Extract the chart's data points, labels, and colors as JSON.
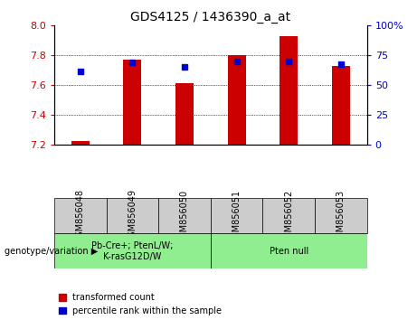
{
  "title": "GDS4125 / 1436390_a_at",
  "samples": [
    "GSM856048",
    "GSM856049",
    "GSM856050",
    "GSM856051",
    "GSM856052",
    "GSM856053"
  ],
  "red_values": [
    7.22,
    7.77,
    7.61,
    7.8,
    7.93,
    7.73
  ],
  "blue_values": [
    7.69,
    7.75,
    7.72,
    7.76,
    7.76,
    7.74
  ],
  "y_min": 7.2,
  "y_max": 8.0,
  "y_ticks": [
    7.2,
    7.4,
    7.6,
    7.8,
    8.0
  ],
  "y2_ticks": [
    0,
    25,
    50,
    75,
    100
  ],
  "group1_label": "Pb-Cre+; PtenL/W;\nK-rasG12D/W",
  "group2_label": "Pten null",
  "group1_indices": [
    0,
    1,
    2
  ],
  "group2_indices": [
    3,
    4,
    5
  ],
  "red_color": "#cc0000",
  "blue_color": "#0000cc",
  "bar_bottom": 7.2,
  "bar_width": 0.35,
  "legend_red": "transformed count",
  "legend_blue": "percentile rank within the sample",
  "genotype_label": "genotype/variation",
  "group_bg_color": "#90EE90",
  "sample_area_bg": "#cccccc",
  "arrow": "▶"
}
